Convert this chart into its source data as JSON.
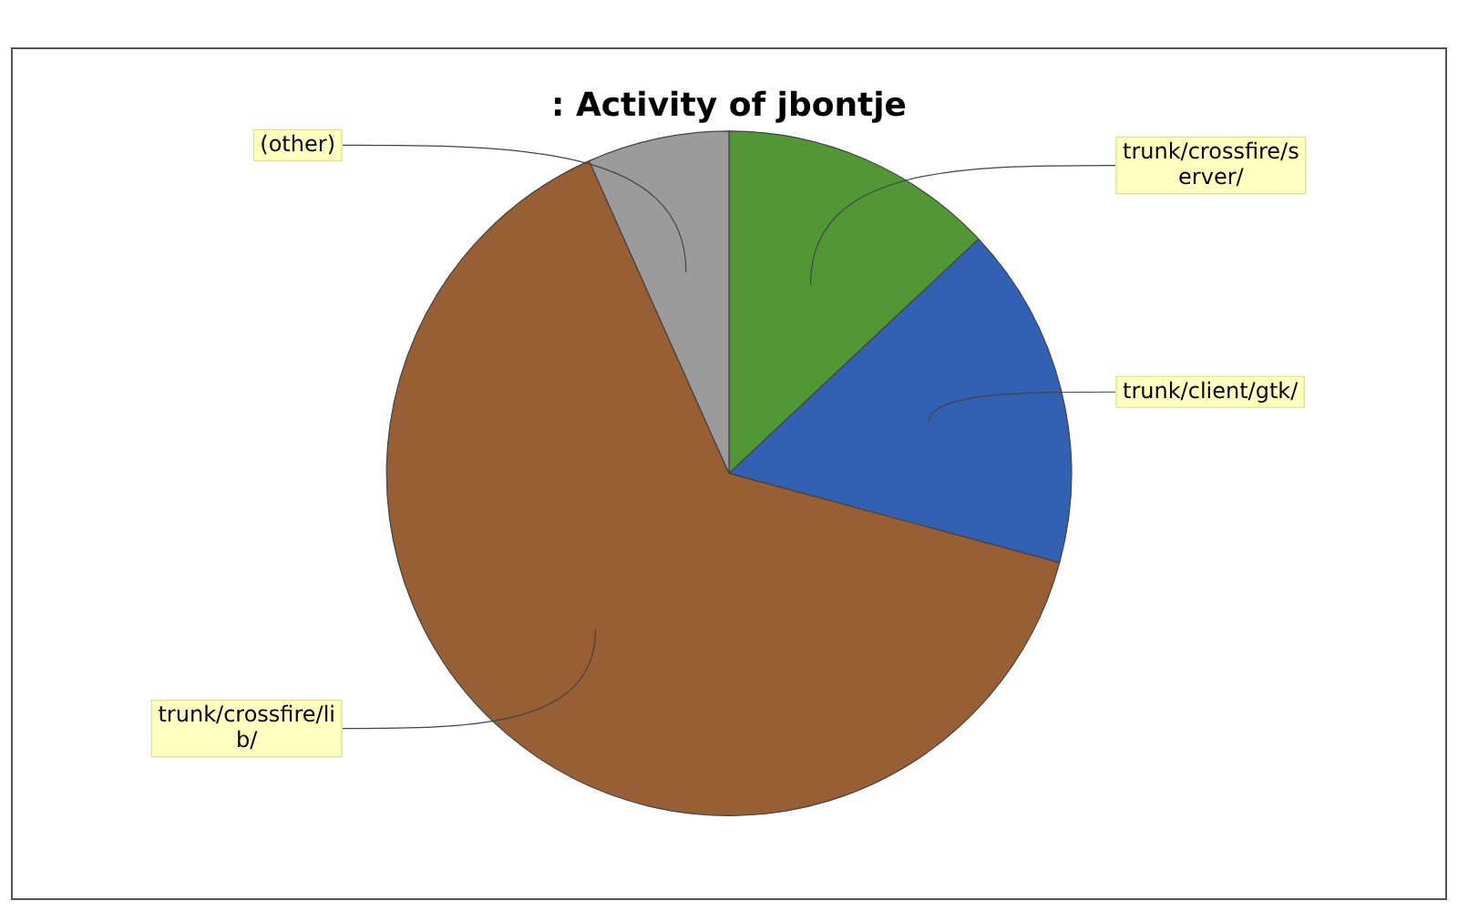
{
  "chart_data": {
    "type": "pie",
    "title": ": Activity of jbontje",
    "categories": [
      "trunk/crossfire/server/",
      "trunk/client/gtk/",
      "trunk/crossfire/lib/",
      "(other)"
    ],
    "values": [
      13,
      16.2,
      64.1,
      6.7
    ],
    "colors": [
      "#529735",
      "#3260b2",
      "#985e34",
      "#9b9b9b"
    ],
    "legend": false
  }
}
